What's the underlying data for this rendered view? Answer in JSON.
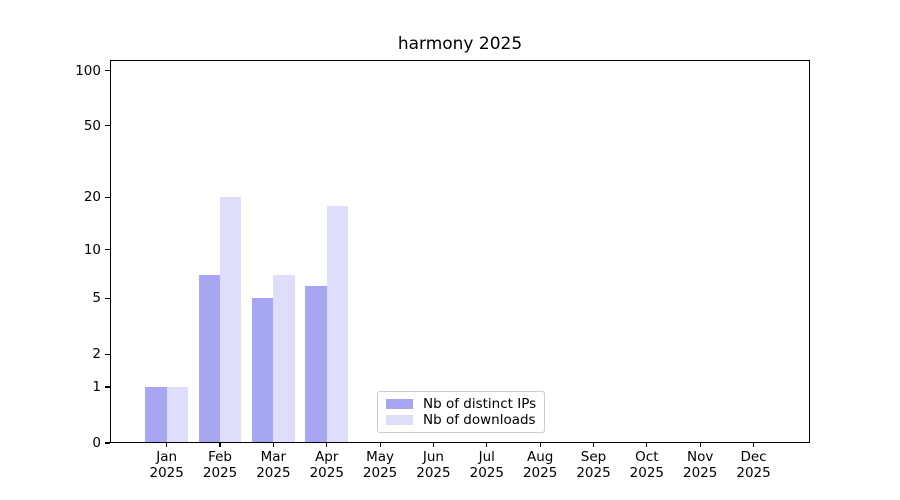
{
  "chart_data": {
    "type": "bar",
    "title": "harmony 2025",
    "categories": [
      "Jan",
      "Feb",
      "Mar",
      "Apr",
      "May",
      "Jun",
      "Jul",
      "Aug",
      "Sep",
      "Oct",
      "Nov",
      "Dec"
    ],
    "category_year": "2025",
    "series": [
      {
        "key": "distinct-ips",
        "name": "Nb of distinct IPs",
        "color": "rgba(20,20,220,0.38)",
        "values": [
          1,
          7,
          5,
          6,
          0,
          0,
          0,
          0,
          0,
          0,
          0,
          0
        ]
      },
      {
        "key": "downloads",
        "name": "Nb of downloads",
        "color": "rgba(20,20,220,0.14)",
        "values": [
          1,
          20,
          7,
          18,
          0,
          0,
          0,
          0,
          0,
          0,
          0,
          0
        ]
      }
    ],
    "y_scale": "log1p",
    "ylim": [
      0,
      100
    ],
    "y_ticks": [
      0,
      1,
      2,
      5,
      10,
      20,
      50,
      100
    ],
    "major_gridlines": [
      1,
      10,
      100
    ],
    "minor_gridlines": [
      2,
      3,
      4,
      5,
      6,
      7,
      8,
      9,
      20,
      30,
      40,
      50,
      60,
      70,
      80,
      90
    ],
    "grid": true,
    "legend_position": "lower center"
  },
  "colors": {
    "major_grid": "#b4b4b4",
    "minor_grid": "#e9e9e9",
    "spine": "#000000",
    "text": "#000000",
    "legend_border": "#cccccc"
  }
}
